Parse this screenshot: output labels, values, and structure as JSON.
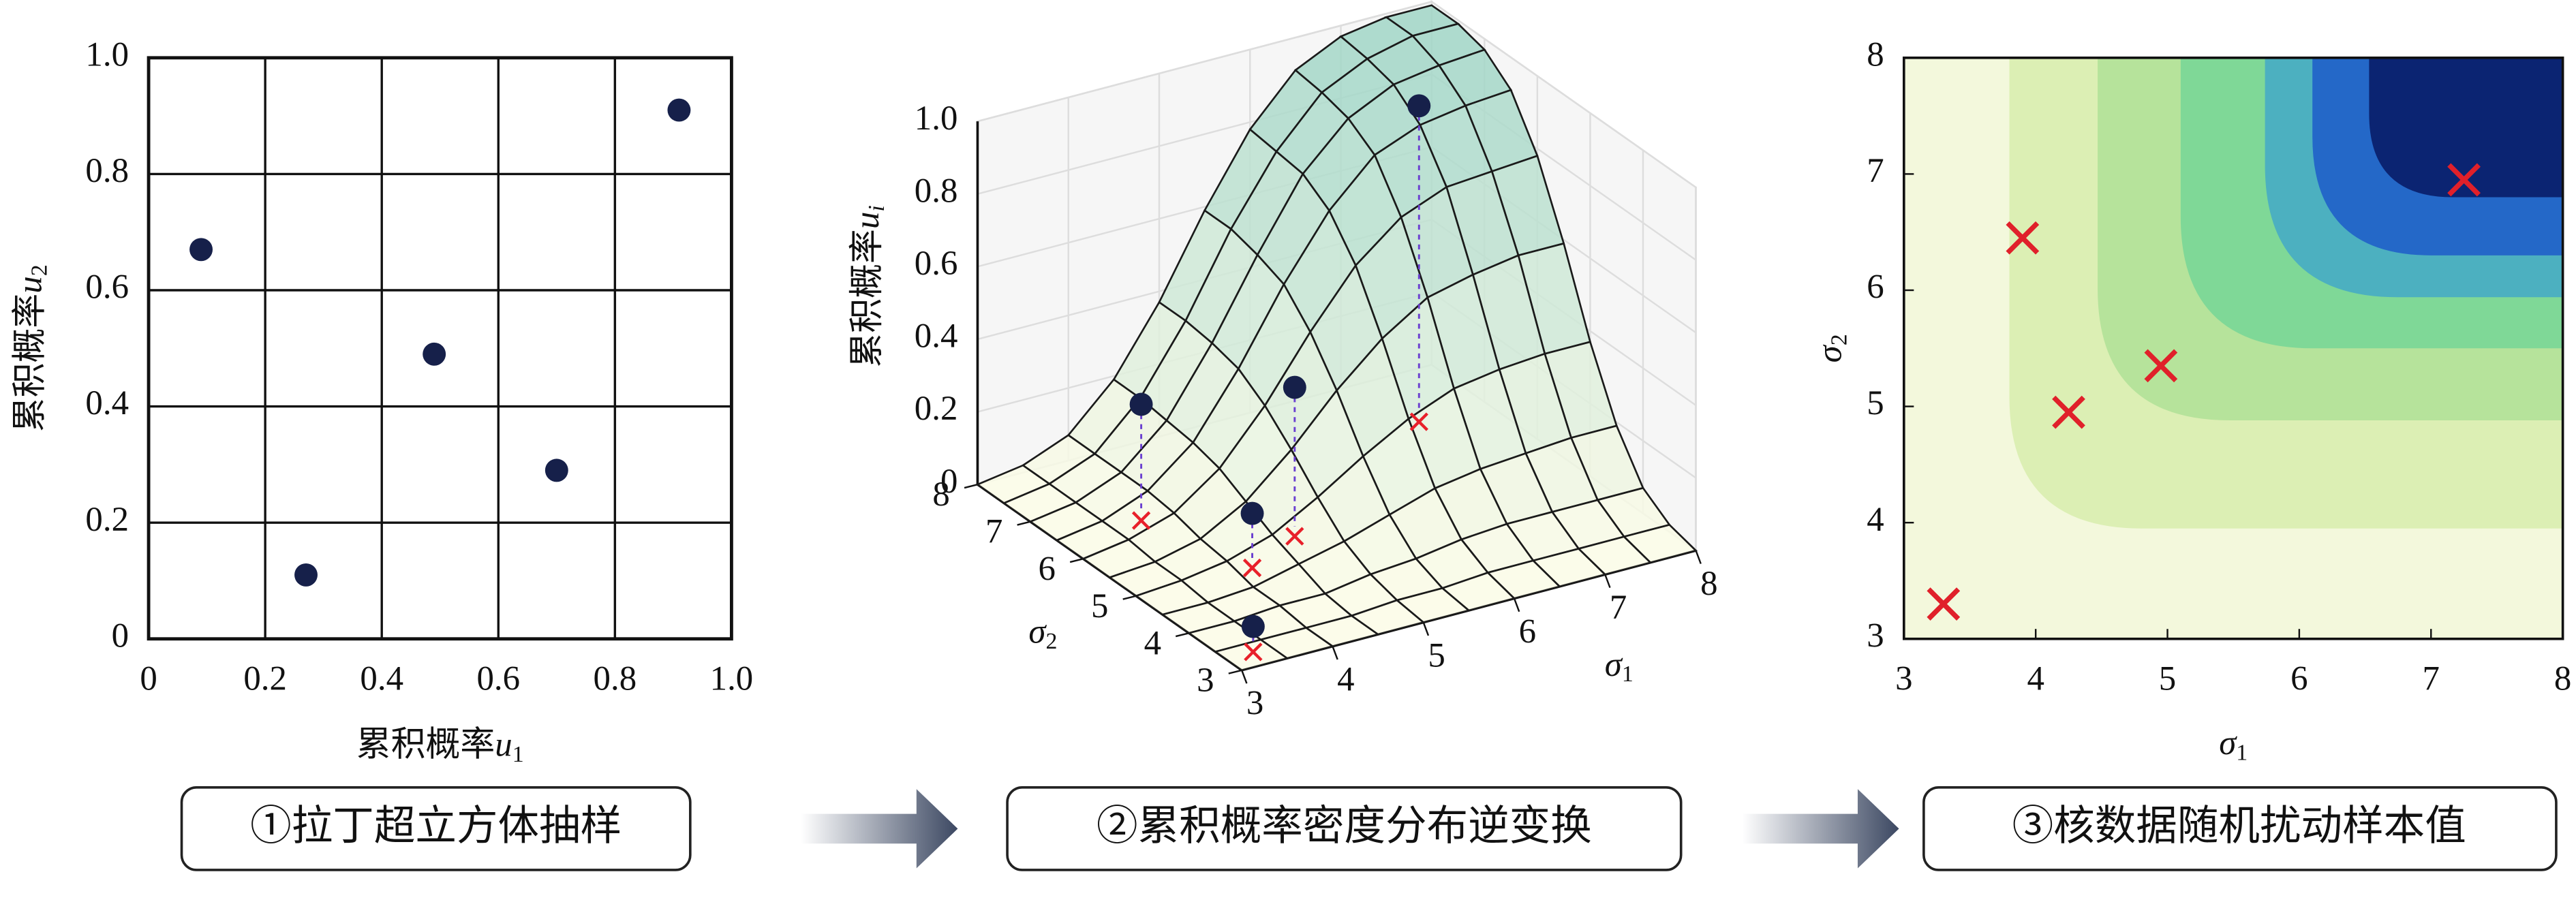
{
  "steps": [
    "①拉丁超立方体抽样",
    "②累积概率密度分布逆变换",
    "③核数据随机扰动样本值"
  ],
  "chart_data": [
    {
      "type": "scatter",
      "xlabel": {
        "text": "累积概率",
        "var": "u",
        "sub": "1"
      },
      "ylabel": {
        "text": "累积概率",
        "var": "u",
        "sub": "2"
      },
      "xlim": [
        0,
        1
      ],
      "ylim": [
        0,
        1
      ],
      "xticks": [
        0,
        0.2,
        0.4,
        0.6,
        0.8,
        {
          "value": 1,
          "label": "1.0"
        }
      ],
      "yticks": [
        0,
        0.2,
        0.4,
        0.6,
        0.8,
        {
          "value": 1,
          "label": "1.0"
        }
      ],
      "grid": true,
      "color": "#16204a",
      "x": [
        0.09,
        0.27,
        0.49,
        0.7,
        0.91
      ],
      "y": [
        0.67,
        0.11,
        0.49,
        0.29,
        0.91
      ]
    },
    {
      "type": "surface",
      "xlabel": {
        "var": "σ",
        "sub": "1"
      },
      "ylabel": {
        "var": "σ",
        "sub": "2"
      },
      "zlabel": {
        "text": "累积概率",
        "var": "u",
        "sub": "i"
      },
      "xlim": [
        3,
        8
      ],
      "ylim": [
        3,
        8
      ],
      "zlim": [
        0,
        1
      ],
      "xticks": [
        3,
        4,
        5,
        6,
        7,
        8
      ],
      "yticks": [
        3,
        4,
        5,
        6,
        7,
        8
      ],
      "zticks": [
        0,
        0.2,
        0.4,
        0.6,
        0.8,
        {
          "value": 1,
          "label": "1.0"
        }
      ],
      "grid_x": [
        3,
        3.5,
        4,
        4.5,
        5,
        5.5,
        6,
        6.5,
        7,
        7.5,
        8
      ],
      "grid_y": [
        3,
        3.5,
        4,
        4.5,
        5,
        5.5,
        6,
        6.5,
        7,
        7.5,
        8
      ],
      "z": [
        [
          0,
          0,
          0,
          0,
          0,
          0,
          0,
          0,
          0,
          0,
          0
        ],
        [
          0,
          0,
          0,
          0,
          0.01,
          0.01,
          0.02,
          0.02,
          0.02,
          0.02,
          0.02
        ],
        [
          0,
          0,
          0.01,
          0.01,
          0.03,
          0.04,
          0.06,
          0.07,
          0.07,
          0.07,
          0.07
        ],
        [
          0,
          0,
          0.01,
          0.04,
          0.07,
          0.11,
          0.15,
          0.17,
          0.18,
          0.19,
          0.19
        ],
        [
          0,
          0.01,
          0.03,
          0.07,
          0.14,
          0.22,
          0.29,
          0.34,
          0.36,
          0.37,
          0.37
        ],
        [
          0,
          0.01,
          0.04,
          0.11,
          0.22,
          0.35,
          0.46,
          0.54,
          0.57,
          0.59,
          0.59
        ],
        [
          0,
          0.02,
          0.06,
          0.15,
          0.29,
          0.46,
          0.61,
          0.71,
          0.76,
          0.77,
          0.78
        ],
        [
          0,
          0.02,
          0.07,
          0.17,
          0.34,
          0.54,
          0.71,
          0.83,
          0.88,
          0.9,
          0.91
        ],
        [
          0,
          0.02,
          0.07,
          0.18,
          0.36,
          0.57,
          0.76,
          0.88,
          0.94,
          0.96,
          0.97
        ],
        [
          0,
          0.02,
          0.07,
          0.19,
          0.37,
          0.59,
          0.77,
          0.9,
          0.96,
          0.99,
          0.99
        ],
        [
          0,
          0.02,
          0.07,
          0.19,
          0.37,
          0.59,
          0.78,
          0.91,
          0.97,
          0.99,
          0.99
        ]
      ],
      "color_low": "#fbfbe6",
      "color_high": "#9fd5c6",
      "points": {
        "x": [
          3.3,
          3.9,
          4.25,
          4.95,
          7.25
        ],
        "y": [
          3.3,
          6.45,
          4.95,
          5.35,
          6.95
        ],
        "z": [
          0.07,
          0.32,
          0.15,
          0.41,
          0.87
        ],
        "color": "#16204a",
        "marker_color": "#e8202a"
      }
    },
    {
      "type": "contour",
      "xlabel": {
        "var": "σ",
        "sub": "1"
      },
      "ylabel": {
        "var": "σ",
        "sub": "2"
      },
      "xlim": [
        3,
        8
      ],
      "ylim": [
        3,
        8
      ],
      "xticks": [
        3,
        4,
        5,
        6,
        7,
        8
      ],
      "yticks": [
        3,
        4,
        5,
        6,
        7,
        8
      ],
      "background": "#f3f8dc",
      "levels": [
        {
          "x": 3.8,
          "y": 3.95,
          "color": "#dcefb4"
        },
        {
          "x": 4.47,
          "y": 4.88,
          "color": "#b6e39b"
        },
        {
          "x": 5.1,
          "y": 5.5,
          "color": "#7fd897"
        },
        {
          "x": 5.74,
          "y": 5.94,
          "color": "#4cb0c0"
        },
        {
          "x": 6.1,
          "y": 6.3,
          "color": "#2468c8"
        },
        {
          "x": 6.53,
          "y": 6.8,
          "color": "#0b2472"
        }
      ],
      "points": {
        "x": [
          3.3,
          3.9,
          4.25,
          4.95,
          7.25
        ],
        "y": [
          3.3,
          6.45,
          4.95,
          5.35,
          6.95
        ],
        "color": "#e0202a"
      }
    }
  ]
}
